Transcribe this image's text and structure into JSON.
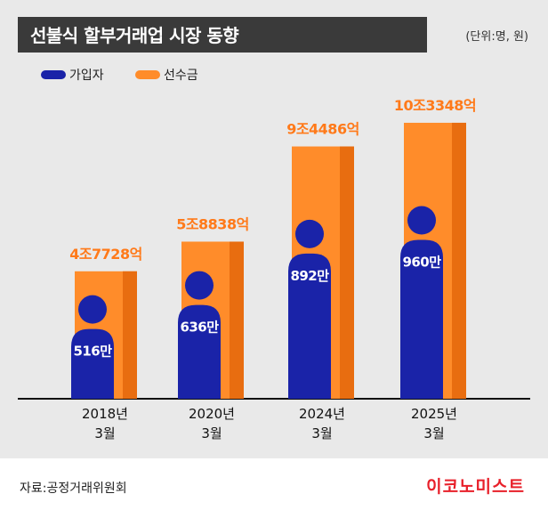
{
  "title": "선불식 할부거래업 시장 동향",
  "unit": "(단위:명, 원)",
  "legend": [
    {
      "label": "가입자",
      "color": "#1a23a8"
    },
    {
      "label": "선수금",
      "color": "#ff8c2a"
    }
  ],
  "chart_data": {
    "type": "bar",
    "categories": [
      [
        "2018년",
        "3월"
      ],
      [
        "2020년",
        "3월"
      ],
      [
        "2024년",
        "3월"
      ],
      [
        "2025년",
        "3월"
      ]
    ],
    "series": [
      {
        "name": "가입자",
        "values": [
          5160000,
          6360000,
          8920000,
          9600000
        ],
        "labels": [
          "516만",
          "636만",
          "892만",
          "960만"
        ]
      },
      {
        "name": "선수금",
        "values": [
          4.7728,
          5.8838,
          9.4486,
          10.3348
        ],
        "labels": [
          "4조7728억",
          "5조8838억",
          "9조4486억",
          "10조3348억"
        ]
      }
    ]
  },
  "source": "자료:공정거래위원회",
  "logo": "이코노미스트",
  "colors": {
    "member": "#1a23a8",
    "prepay": "#ff8c2a",
    "prepay_shade": "#e86d10",
    "label": "#ff7a1a"
  }
}
